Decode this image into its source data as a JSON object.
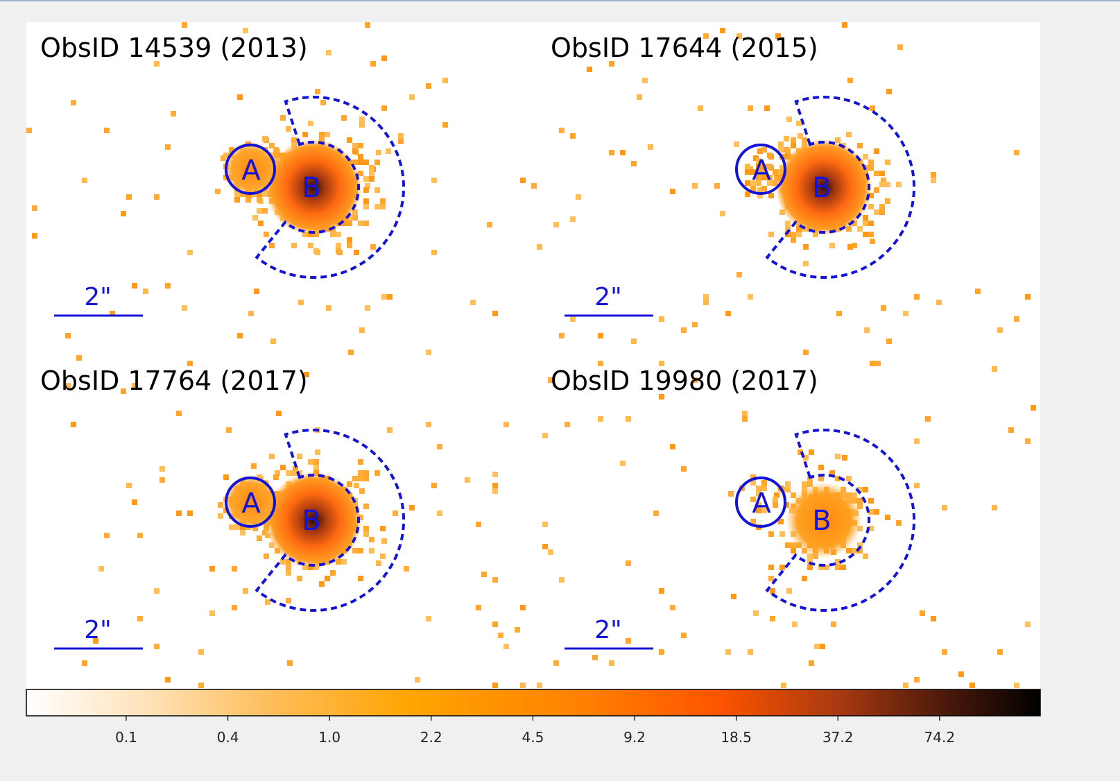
{
  "panels": [
    {
      "title": "ObsID 14539 (2013)",
      "source_a": "A",
      "source_b": "B",
      "scale_label": "2\""
    },
    {
      "title": "ObsID 17644 (2015)",
      "source_a": "A",
      "source_b": "B",
      "scale_label": "2\""
    },
    {
      "title": "ObsID 17764 (2017)",
      "source_a": "A",
      "source_b": "B",
      "scale_label": "2\""
    },
    {
      "title": "ObsID 19980 (2017)",
      "source_a": "A",
      "source_b": "B",
      "scale_label": "2\""
    }
  ],
  "colorbar": {
    "ticks": [
      "0.1",
      "0.4",
      "1.0",
      "2.2",
      "4.5",
      "9.2",
      "18.5",
      "37.2",
      "74.2"
    ]
  }
}
